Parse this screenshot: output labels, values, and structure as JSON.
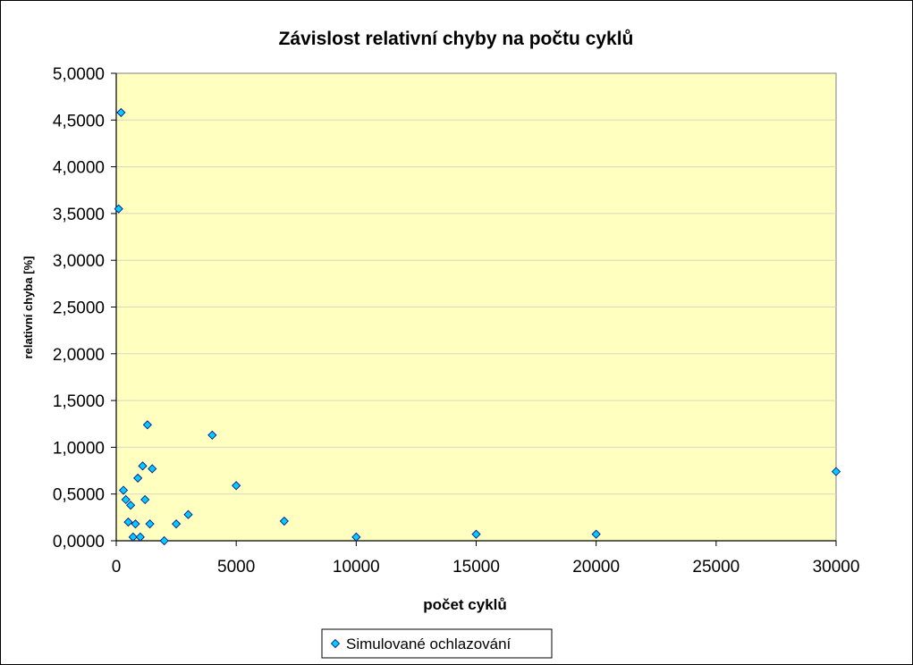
{
  "chart_data": {
    "type": "scatter",
    "title": "Závislost relativní chyby na počtu cyklů",
    "xlabel": "počet cyklů",
    "ylabel": "relativní chyba [%]",
    "xlim": [
      0,
      30000
    ],
    "ylim": [
      0,
      5
    ],
    "x_ticks": [
      "0",
      "5000",
      "10000",
      "15000",
      "20000",
      "25000",
      "30000"
    ],
    "x_tick_values": [
      0,
      5000,
      10000,
      15000,
      20000,
      25000,
      30000
    ],
    "y_ticks": [
      "0,0000",
      "0,5000",
      "1,0000",
      "1,5000",
      "2,0000",
      "2,5000",
      "3,0000",
      "3,5000",
      "4,0000",
      "4,5000",
      "5,0000"
    ],
    "y_tick_values": [
      0,
      0.5,
      1.0,
      1.5,
      2.0,
      2.5,
      3.0,
      3.5,
      4.0,
      4.5,
      5.0
    ],
    "grid": true,
    "plot_background": "#ffffc0",
    "marker_color": "#00ccff",
    "legend_position": "bottom",
    "series": [
      {
        "name": "Simulované ochlazování",
        "points": [
          {
            "x": 100,
            "y": 3.55
          },
          {
            "x": 200,
            "y": 4.58
          },
          {
            "x": 300,
            "y": 0.54
          },
          {
            "x": 400,
            "y": 0.44
          },
          {
            "x": 500,
            "y": 0.2
          },
          {
            "x": 600,
            "y": 0.38
          },
          {
            "x": 700,
            "y": 0.04
          },
          {
            "x": 800,
            "y": 0.18
          },
          {
            "x": 900,
            "y": 0.67
          },
          {
            "x": 1000,
            "y": 0.04
          },
          {
            "x": 1100,
            "y": 0.8
          },
          {
            "x": 1200,
            "y": 0.44
          },
          {
            "x": 1300,
            "y": 1.24
          },
          {
            "x": 1400,
            "y": 0.18
          },
          {
            "x": 1500,
            "y": 0.77
          },
          {
            "x": 2000,
            "y": 0.0
          },
          {
            "x": 2500,
            "y": 0.18
          },
          {
            "x": 3000,
            "y": 0.28
          },
          {
            "x": 4000,
            "y": 1.13
          },
          {
            "x": 5000,
            "y": 0.59
          },
          {
            "x": 7000,
            "y": 0.21
          },
          {
            "x": 10000,
            "y": 0.04
          },
          {
            "x": 15000,
            "y": 0.07
          },
          {
            "x": 20000,
            "y": 0.07
          },
          {
            "x": 30000,
            "y": 0.74
          }
        ]
      }
    ]
  }
}
